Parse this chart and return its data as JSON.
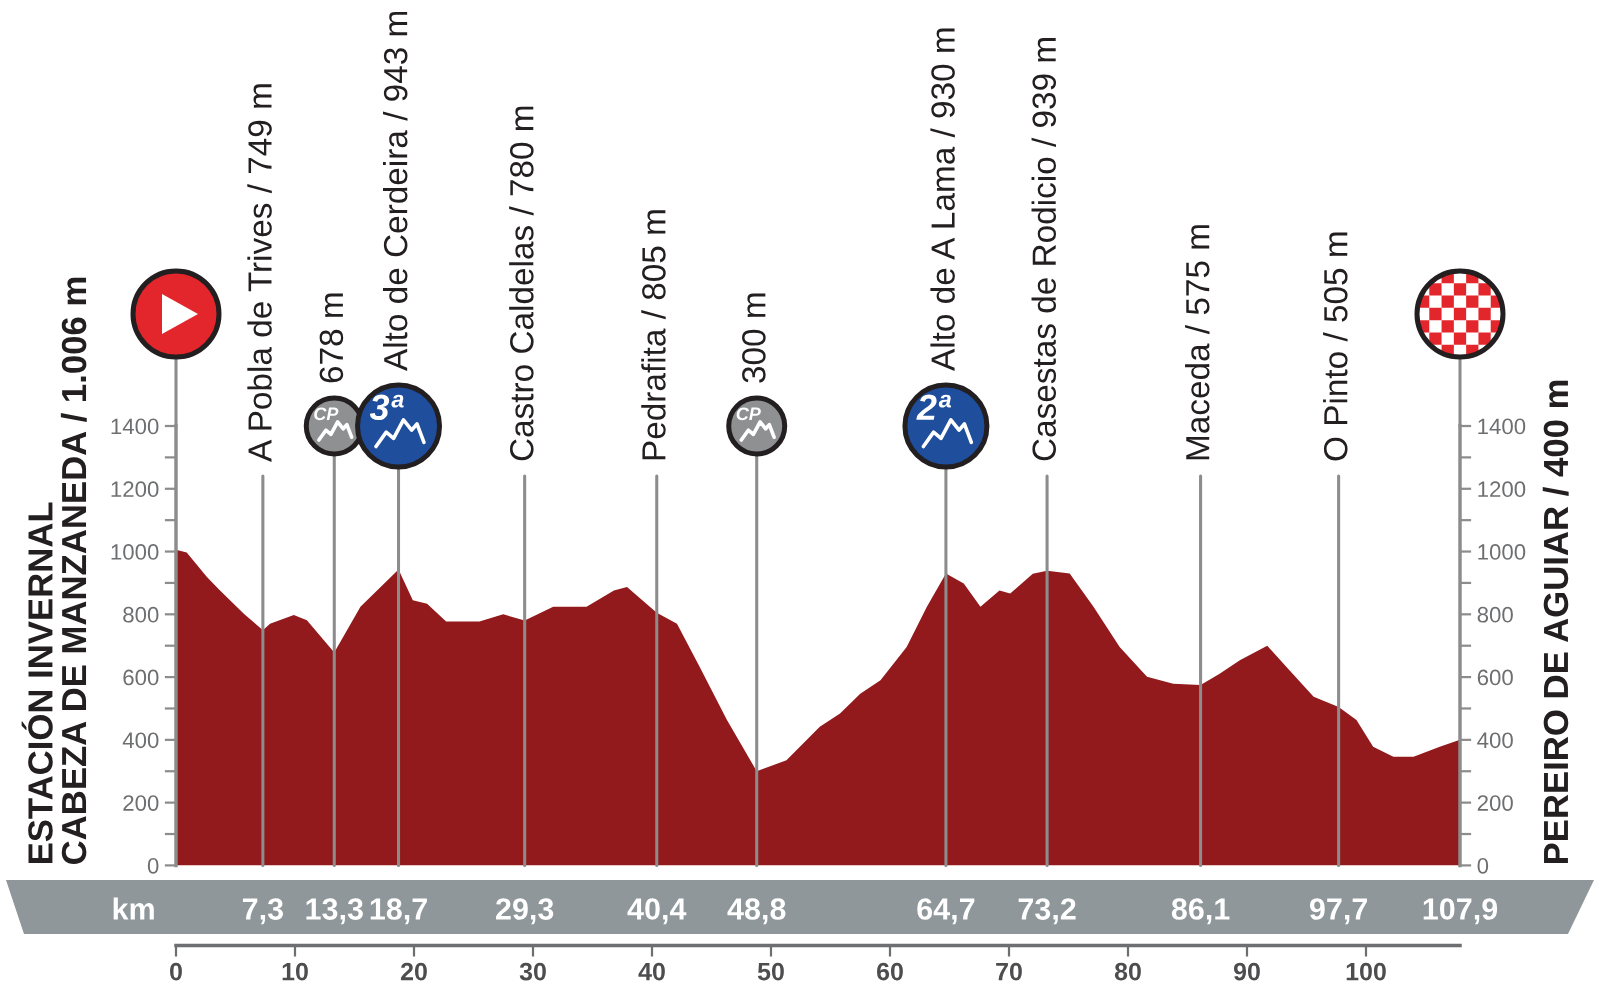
{
  "chart_data": {
    "type": "area",
    "ylabel": "ESTACIÓN INVERNAL\nCABEZA DE MANZANEDA / 1.006 m",
    "y2label": "PEREIRO DE AGUIAR / 400 m",
    "x2label": "km",
    "x": [
      0,
      0.9,
      2.6,
      3.7,
      5.7,
      7.3,
      7.9,
      9.9,
      11.0,
      13.3,
      15.5,
      18.7,
      19.9,
      21.1,
      22.7,
      25.5,
      27.5,
      29.3,
      31.7,
      34.5,
      36.8,
      37.9,
      40.4,
      42.1,
      44.0,
      46.3,
      48.8,
      51.3,
      54.1,
      55.8,
      57.5,
      59.2,
      61.4,
      63.1,
      64.7,
      66.2,
      67.6,
      69.2,
      70.1,
      72.0,
      73.2,
      75.1,
      77.1,
      79.3,
      81.6,
      83.8,
      86.1,
      87.7,
      89.4,
      91.7,
      93.3,
      95.6,
      97.7,
      99.2,
      100.6,
      102.3,
      104.0,
      106.2,
      107.9
    ],
    "values": [
      1006,
      997,
      919,
      876,
      802,
      749,
      770,
      798,
      781,
      678,
      824,
      943,
      845,
      834,
      777,
      777,
      800,
      780,
      824,
      824,
      876,
      887,
      805,
      770,
      633,
      463,
      300,
      335,
      442,
      484,
      547,
      590,
      696,
      824,
      930,
      898,
      824,
      876,
      866,
      929,
      939,
      930,
      824,
      696,
      601,
      579,
      575,
      611,
      654,
      700,
      633,
      537,
      505,
      463,
      378,
      346,
      346,
      378,
      400
    ],
    "color": "#921a1c",
    "xlim": [
      0,
      107.9
    ],
    "xticks": [
      0,
      10,
      20,
      30,
      40,
      50,
      60,
      70,
      80,
      90,
      100
    ],
    "x2lim": [
      0,
      107.9
    ],
    "x2ticks": [
      {
        "value": 7.3,
        "label": "7,3"
      },
      {
        "value": 13.3,
        "label": "13,3"
      },
      {
        "value": 18.7,
        "label": "18,7"
      },
      {
        "value": 29.3,
        "label": "29,3"
      },
      {
        "value": 40.4,
        "label": "40,4"
      },
      {
        "value": 48.8,
        "label": "48,8"
      },
      {
        "value": 64.7,
        "label": "64,7"
      },
      {
        "value": 73.2,
        "label": "73,2"
      },
      {
        "value": 86.1,
        "label": "86,1"
      },
      {
        "value": 97.7,
        "label": "97,7"
      },
      {
        "value": 107.9,
        "label": "107,9"
      }
    ],
    "ylim": [
      0,
      1400
    ],
    "yticks": [
      0,
      {
        "value": 100,
        "label": null
      },
      200,
      {
        "value": 300,
        "label": null
      },
      400,
      {
        "value": 500,
        "label": null
      },
      600,
      {
        "value": 700,
        "label": null
      },
      800,
      {
        "value": 900,
        "label": null
      },
      1000,
      {
        "value": 1100,
        "label": null
      },
      1200,
      {
        "value": 1300,
        "label": null
      },
      1400
    ],
    "y2lim": [
      0,
      1400
    ],
    "y2ticks": [
      0,
      {
        "value": 100,
        "label": null
      },
      200,
      {
        "value": 300,
        "label": null
      },
      400,
      {
        "value": 500,
        "label": null
      },
      600,
      {
        "value": 700,
        "label": null
      },
      800,
      {
        "value": 900,
        "label": null
      },
      1000,
      {
        "value": 1100,
        "label": null
      },
      1200,
      {
        "value": 1300,
        "label": null
      },
      1400
    ],
    "ref_lines": [
      {
        "axis": "x",
        "value": 7.3,
        "label": "A Pobla de Trives / 749 m",
        "color": "#8c8c8c"
      },
      {
        "axis": "x",
        "value": 13.3,
        "label": "678 m",
        "color": "#8c8c8c"
      },
      {
        "axis": "x",
        "value": 18.7,
        "label": "Alto de Cerdeira / 943 m",
        "color": "#8c8c8c"
      },
      {
        "axis": "x",
        "value": 29.3,
        "label": "Castro Caldelas / 780 m",
        "color": "#8c8c8c"
      },
      {
        "axis": "x",
        "value": 40.4,
        "label": "Pedrafita / 805 m",
        "color": "#8c8c8c"
      },
      {
        "axis": "x",
        "value": 48.8,
        "label": "300 m",
        "color": "#8c8c8c"
      },
      {
        "axis": "x",
        "value": 64.7,
        "label": "Alto de A Lama / 930 m",
        "color": "#8c8c8c"
      },
      {
        "axis": "x",
        "value": 73.2,
        "label": "Casestas de Rodicio / 939 m",
        "color": "#8c8c8c"
      },
      {
        "axis": "x",
        "value": 86.1,
        "label": "Maceda / 575 m",
        "color": "#8c8c8c"
      },
      {
        "axis": "x",
        "value": 97.7,
        "label": "O Pinto / 505 m",
        "color": "#8c8c8c"
      }
    ],
    "annotations": [
      "CP",
      "3ª",
      "CP",
      "2ª"
    ]
  }
}
